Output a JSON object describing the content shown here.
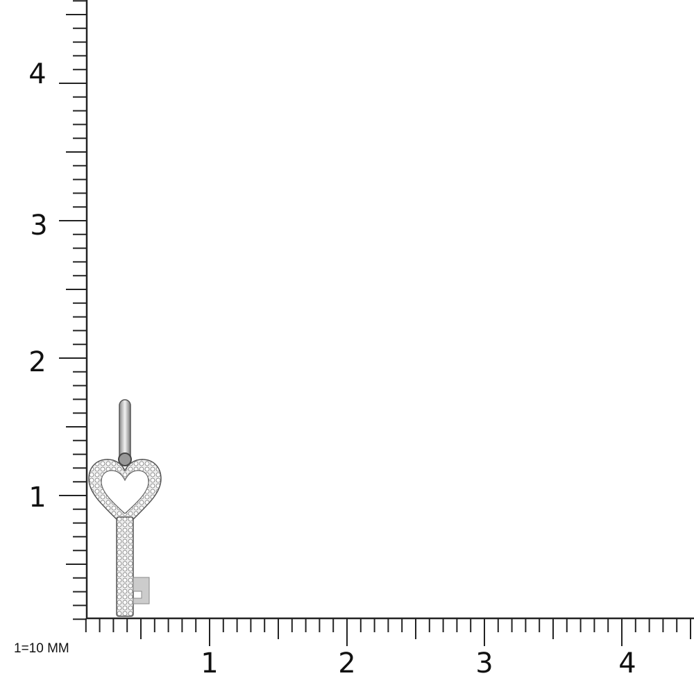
{
  "scale_note": "1=10 MM",
  "x_axis": {
    "labels": [
      "1",
      "2",
      "3",
      "4"
    ],
    "range": [
      0.1,
      4.5
    ]
  },
  "y_axis": {
    "labels": [
      "1",
      "2",
      "3",
      "4"
    ],
    "range": [
      0.1,
      4.6
    ]
  },
  "product": {
    "type": "heart key pendant with pavé diamonds",
    "metal_color": "#c9c9c9"
  }
}
